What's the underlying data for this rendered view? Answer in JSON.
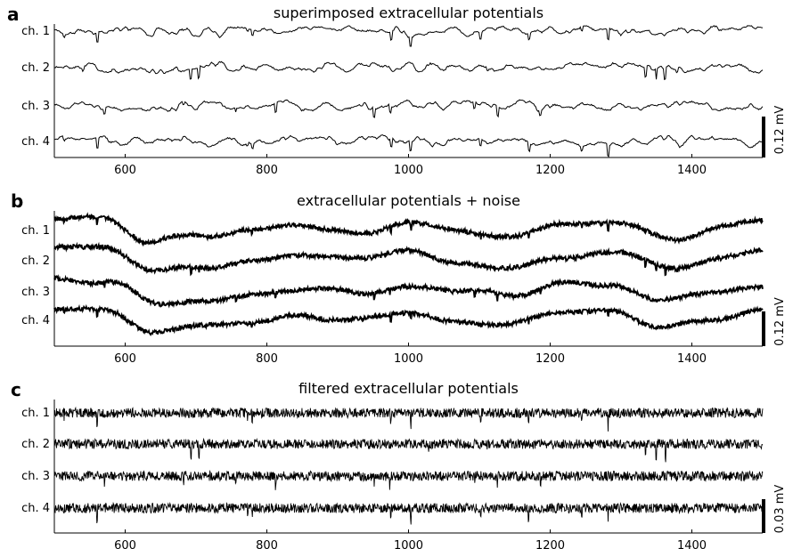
{
  "chart_data": [
    {
      "panel_letter": "a",
      "type": "line",
      "title": "superimposed extracellular potentials",
      "channels": [
        "ch. 1",
        "ch. 2",
        "ch. 3",
        "ch. 4"
      ],
      "x_ticks": [
        600,
        800,
        1000,
        1200,
        1400
      ],
      "xlim": [
        500,
        1500
      ],
      "scale_bar_label": "0.12 mV",
      "style": "thin line, slow fluctuations with sparse downward spikes"
    },
    {
      "panel_letter": "b",
      "type": "line",
      "title": "extracellular potentials + noise",
      "channels": [
        "ch. 1",
        "ch. 2",
        "ch. 3",
        "ch. 4"
      ],
      "x_ticks": [
        600,
        800,
        1000,
        1200,
        1400
      ],
      "xlim": [
        500,
        1500
      ],
      "scale_bar_label": "0.12 mV",
      "style": "thick noisy line with large correlated low-frequency drift"
    },
    {
      "panel_letter": "c",
      "type": "line",
      "title": "filtered extracellular potentials",
      "channels": [
        "ch. 1",
        "ch. 2",
        "ch. 3",
        "ch. 4"
      ],
      "x_ticks": [
        600,
        800,
        1000,
        1200,
        1400
      ],
      "xlim": [
        500,
        1500
      ],
      "scale_bar_label": "0.03 mV",
      "style": "high-frequency band with many spikes"
    }
  ]
}
